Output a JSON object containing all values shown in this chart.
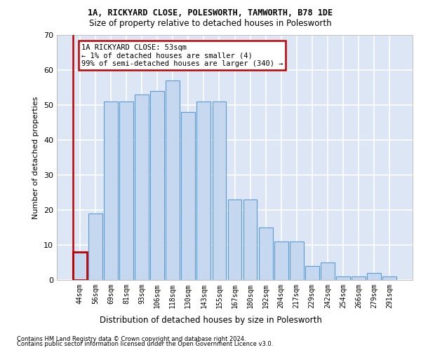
{
  "title_line1": "1A, RICKYARD CLOSE, POLESWORTH, TAMWORTH, B78 1DE",
  "title_line2": "Size of property relative to detached houses in Polesworth",
  "xlabel": "Distribution of detached houses by size in Polesworth",
  "ylabel": "Number of detached properties",
  "categories": [
    "44sqm",
    "56sqm",
    "69sqm",
    "81sqm",
    "93sqm",
    "106sqm",
    "118sqm",
    "130sqm",
    "143sqm",
    "155sqm",
    "167sqm",
    "180sqm",
    "192sqm",
    "204sqm",
    "217sqm",
    "229sqm",
    "242sqm",
    "254sqm",
    "266sqm",
    "279sqm",
    "291sqm"
  ],
  "bar_values": [
    8,
    19,
    51,
    51,
    53,
    54,
    57,
    48,
    51,
    51,
    23,
    23,
    15,
    11,
    11,
    4,
    5,
    1,
    1,
    2,
    1
  ],
  "bar_color": "#c5d8f0",
  "bar_edge_color": "#5b9bd5",
  "property_bar_index": 0,
  "property_bar_edge_color": "#c00000",
  "annotation_title": "1A RICKYARD CLOSE: 53sqm",
  "annotation_line1": "← 1% of detached houses are smaller (4)",
  "annotation_line2": "99% of semi-detached houses are larger (340) →",
  "footnote1": "Contains HM Land Registry data © Crown copyright and database right 2024.",
  "footnote2": "Contains public sector information licensed under the Open Government Licence v3.0.",
  "ylim": [
    0,
    70
  ],
  "yticks": [
    0,
    10,
    20,
    30,
    40,
    50,
    60,
    70
  ],
  "bg_color": "#dce6f5",
  "grid_color": "#ffffff",
  "fig_bg_color": "#ffffff"
}
